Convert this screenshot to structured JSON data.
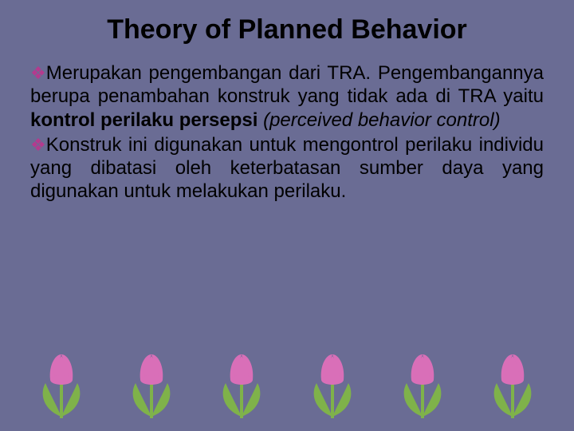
{
  "title": "Theory of Planned Behavior",
  "bullet_glyph": "❖",
  "bullet_color": "#b43a8e",
  "background_color": "#6a6c94",
  "paragraphs": [
    {
      "lead": "Merupakan pengembangan dari TRA. Pengembangannya berupa penambahan konstruk yang tidak ada di TRA yaitu ",
      "bold": "kontrol perilaku persepsi ",
      "italic": "(perceived behavior control)"
    },
    {
      "lead": "Konstruk ini digunakan untuk mengontrol perilaku individu yang dibatasi oleh keterbatasan sumber daya yang digunakan untuk melakukan perilaku.",
      "bold": "",
      "italic": ""
    }
  ],
  "flowers": [
    {
      "petal_color": "#d96fb8",
      "stem_color": "#7fb24a",
      "leaf_color": "#7fb24a"
    },
    {
      "petal_color": "#d96fb8",
      "stem_color": "#7fb24a",
      "leaf_color": "#7fb24a"
    },
    {
      "petal_color": "#d96fb8",
      "stem_color": "#7fb24a",
      "leaf_color": "#7fb24a"
    },
    {
      "petal_color": "#d96fb8",
      "stem_color": "#7fb24a",
      "leaf_color": "#7fb24a"
    },
    {
      "petal_color": "#d96fb8",
      "stem_color": "#7fb24a",
      "leaf_color": "#7fb24a"
    },
    {
      "petal_color": "#d96fb8",
      "stem_color": "#7fb24a",
      "leaf_color": "#7fb24a"
    }
  ]
}
